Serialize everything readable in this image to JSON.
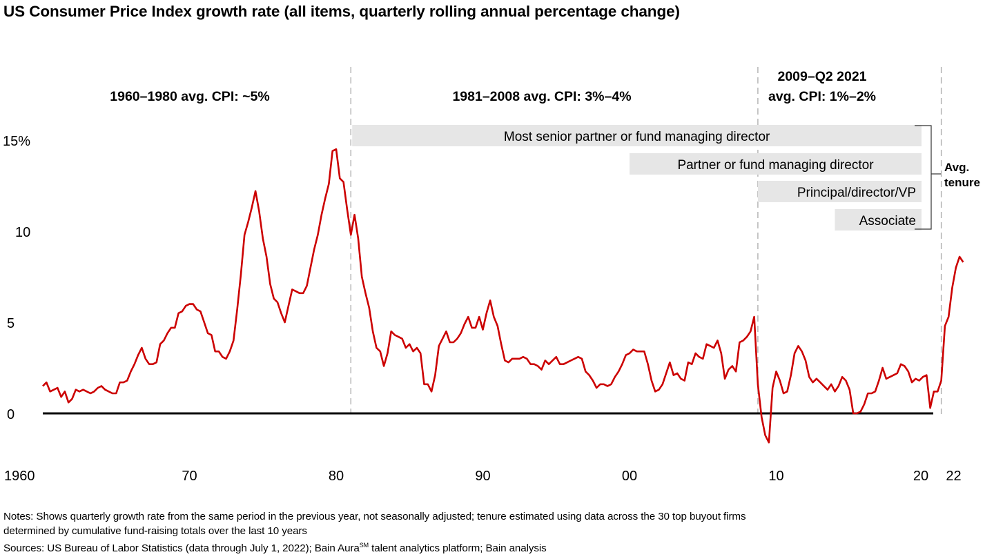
{
  "title": "US Consumer Price Index growth rate (all items, quarterly rolling annual percentage change)",
  "periods": [
    {
      "label_lines": [
        "1960–1980 avg. CPI: ~5%"
      ]
    },
    {
      "label_lines": [
        "1981–2008 avg. CPI: 3%–4%"
      ]
    },
    {
      "label_lines": [
        "2009–Q2 2021",
        "avg. CPI: 1%–2%"
      ]
    }
  ],
  "tenure_bars": [
    {
      "label": "Most senior partner or fund managing director",
      "start_year": 1981.0,
      "end_year": 2020.0
    },
    {
      "label": "Partner or fund managing director",
      "start_year": 2000.0,
      "end_year": 2020.0
    },
    {
      "label": "Principal/director/VP",
      "start_year": 2008.75,
      "end_year": 2020.0
    },
    {
      "label": "Associate",
      "start_year": 2014.0,
      "end_year": 2020.0
    }
  ],
  "bracket_label_lines": [
    "Avg.",
    "tenure"
  ],
  "notes": {
    "line1": "Notes: Shows quarterly growth rate from the same period in the previous year, not seasonally adjusted; tenure estimated using data across the 30 top buyout firms",
    "line2": "determined by cumulative fund-raising totals over the last 10 years",
    "sources_prefix": "Sources: US Bureau of Labor Statistics (data through July 1, 2022); Bain Aura",
    "sources_sup": "SM",
    "sources_suffix": " talent analytics platform; Bain analysis"
  },
  "colors": {
    "line": "#cc0000",
    "bar": "#e6e6e6",
    "divider": "#aaaaaa",
    "axis": "#000000"
  },
  "chart_data": {
    "type": "line",
    "title": "US Consumer Price Index growth rate (all items, quarterly rolling annual percentage change)",
    "xlabel": "",
    "ylabel": "",
    "ylim": [
      -2,
      15
    ],
    "xlim": [
      1960,
      2022.5
    ],
    "y_ticks": [
      0,
      5,
      10,
      15
    ],
    "y_tick_labels": [
      "0",
      "5",
      "10",
      "15%"
    ],
    "x_ticks": [
      1960,
      1970,
      1980,
      1990,
      2000,
      2010,
      2020,
      2022
    ],
    "x_tick_labels": [
      "1960",
      "70",
      "80",
      "90",
      "00",
      "10",
      "20",
      "22"
    ],
    "dividers": [
      1981,
      2008.75,
      2021.25
    ],
    "grid": false,
    "legend": "none",
    "series": [
      {
        "name": "CPI growth rate (%)",
        "start": 1960.0,
        "step": 0.25,
        "values": [
          1.5,
          1.7,
          1.2,
          1.3,
          1.4,
          0.9,
          1.2,
          0.6,
          0.8,
          1.3,
          1.2,
          1.3,
          1.2,
          1.1,
          1.2,
          1.4,
          1.5,
          1.3,
          1.2,
          1.1,
          1.1,
          1.7,
          1.7,
          1.8,
          2.3,
          2.7,
          3.2,
          3.6,
          3.0,
          2.7,
          2.7,
          2.8,
          3.8,
          4.0,
          4.4,
          4.7,
          4.7,
          5.5,
          5.6,
          5.9,
          6.0,
          6.0,
          5.7,
          5.6,
          5.0,
          4.4,
          4.3,
          3.4,
          3.4,
          3.1,
          3.0,
          3.4,
          4.0,
          5.7,
          7.6,
          9.8,
          10.5,
          11.3,
          12.2,
          11.1,
          9.6,
          8.6,
          7.1,
          6.3,
          6.1,
          5.5,
          5.0,
          5.9,
          6.8,
          6.7,
          6.6,
          6.6,
          7.0,
          8.0,
          9.0,
          9.8,
          10.9,
          11.8,
          12.6,
          14.4,
          14.5,
          12.9,
          12.7,
          11.2,
          9.8,
          10.9,
          9.6,
          7.5,
          6.6,
          5.8,
          4.5,
          3.6,
          3.4,
          2.6,
          3.3,
          4.5,
          4.3,
          4.2,
          4.1,
          3.6,
          3.8,
          3.4,
          3.6,
          3.3,
          1.6,
          1.6,
          1.2,
          2.1,
          3.7,
          4.1,
          4.5,
          3.9,
          3.9,
          4.1,
          4.4,
          4.9,
          5.3,
          4.7,
          4.7,
          5.3,
          4.6,
          5.5,
          6.2,
          5.3,
          4.8,
          3.8,
          2.9,
          2.8,
          3.0,
          3.0,
          3.0,
          3.1,
          3.0,
          2.7,
          2.7,
          2.6,
          2.4,
          2.9,
          2.7,
          2.9,
          3.1,
          2.7,
          2.7,
          2.8,
          2.9,
          3.0,
          3.1,
          3.0,
          2.3,
          2.1,
          1.8,
          1.4,
          1.6,
          1.6,
          1.5,
          1.6,
          2.0,
          2.3,
          2.7,
          3.2,
          3.3,
          3.5,
          3.4,
          3.4,
          3.4,
          2.7,
          1.8,
          1.2,
          1.3,
          1.6,
          2.2,
          2.8,
          2.1,
          2.2,
          1.9,
          1.8,
          2.8,
          2.7,
          3.3,
          3.1,
          3.0,
          3.8,
          3.7,
          3.6,
          4.0,
          3.3,
          1.9,
          2.4,
          2.6,
          2.3,
          3.9,
          4.0,
          4.2,
          4.5,
          5.3,
          1.6,
          -0.2,
          -1.2,
          -1.6,
          1.4,
          2.3,
          1.8,
          1.1,
          1.2,
          2.1,
          3.3,
          3.7,
          3.4,
          2.9,
          2.0,
          1.7,
          1.9,
          1.7,
          1.5,
          1.3,
          1.6,
          1.2,
          1.5,
          2.0,
          1.8,
          1.3,
          0.0,
          0.0,
          0.1,
          0.5,
          1.1,
          1.1,
          1.2,
          1.8,
          2.5,
          1.9,
          2.0,
          2.1,
          2.2,
          2.7,
          2.6,
          2.3,
          1.7,
          1.9,
          1.8,
          2.0,
          2.1,
          0.3,
          1.2,
          1.2,
          1.8,
          4.8,
          5.3,
          6.9,
          8.0,
          8.6,
          8.3
        ]
      }
    ]
  }
}
